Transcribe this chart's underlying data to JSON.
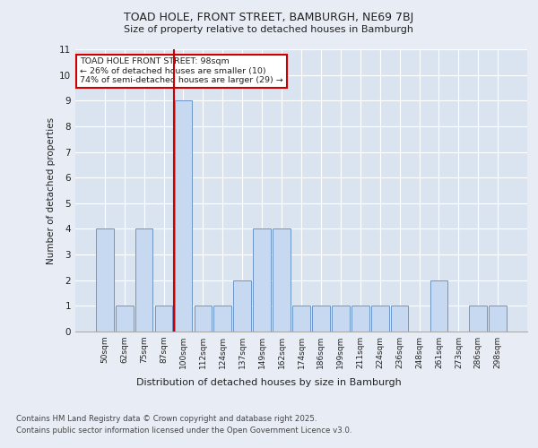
{
  "title_line1": "TOAD HOLE, FRONT STREET, BAMBURGH, NE69 7BJ",
  "title_line2": "Size of property relative to detached houses in Bamburgh",
  "xlabel": "Distribution of detached houses by size in Bamburgh",
  "ylabel": "Number of detached properties",
  "categories": [
    "50sqm",
    "62sqm",
    "75sqm",
    "87sqm",
    "100sqm",
    "112sqm",
    "124sqm",
    "137sqm",
    "149sqm",
    "162sqm",
    "174sqm",
    "186sqm",
    "199sqm",
    "211sqm",
    "224sqm",
    "236sqm",
    "248sqm",
    "261sqm",
    "273sqm",
    "286sqm",
    "298sqm"
  ],
  "values": [
    4,
    1,
    4,
    1,
    9,
    1,
    1,
    2,
    4,
    4,
    1,
    1,
    1,
    1,
    1,
    1,
    0,
    2,
    0,
    1,
    1
  ],
  "bar_color": "#c6d9f0",
  "bar_edge_color": "#6b96c8",
  "subject_bar_index": 4,
  "annotation_text": "TOAD HOLE FRONT STREET: 98sqm\n← 26% of detached houses are smaller (10)\n74% of semi-detached houses are larger (29) →",
  "annotation_box_color": "#ffffff",
  "annotation_box_edge_color": "#cc0000",
  "subject_line_color": "#cc0000",
  "background_color": "#e8edf5",
  "plot_bg_color": "#dae4f0",
  "grid_color": "#ffffff",
  "ylim": [
    0,
    11
  ],
  "yticks": [
    0,
    1,
    2,
    3,
    4,
    5,
    6,
    7,
    8,
    9,
    10,
    11
  ],
  "footer_line1": "Contains HM Land Registry data © Crown copyright and database right 2025.",
  "footer_line2": "Contains public sector information licensed under the Open Government Licence v3.0."
}
